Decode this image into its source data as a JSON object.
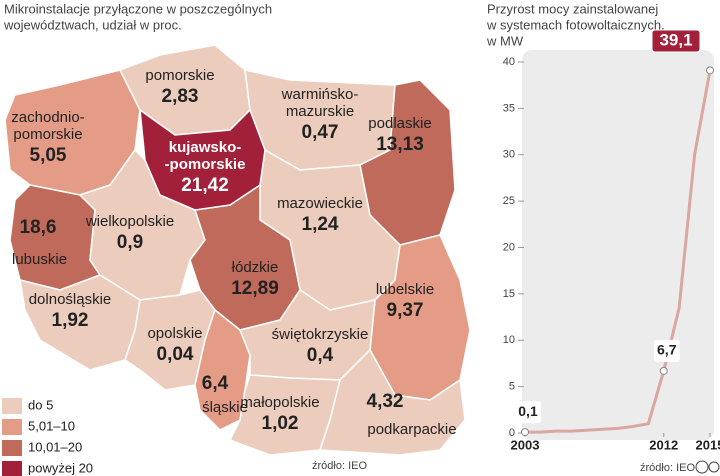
{
  "map": {
    "title": [
      "Mikroinstalacje przyłączone w poszczególnych",
      "województwach, udział w proc."
    ],
    "legend": [
      {
        "label": "do 5",
        "upper": 5,
        "color": "#eccdbd"
      },
      {
        "label": "5,01–10",
        "upper": 10,
        "color": "#e49c86"
      },
      {
        "label": "10,01–20",
        "upper": 20,
        "color": "#bf6a5a"
      },
      {
        "label": "powyżej 20",
        "upper": null,
        "color": "#a3203a"
      }
    ],
    "regions": [
      {
        "name": [
          "zachodnio-",
          "pomorskie"
        ],
        "value": 5.05,
        "value_label": "5,05"
      },
      {
        "name": [
          "pomorskie"
        ],
        "value": 2.83,
        "value_label": "2,83"
      },
      {
        "name": [
          "warmińsko-",
          "mazurskie"
        ],
        "value": 0.47,
        "value_label": "0,47"
      },
      {
        "name": [
          "podlaskie"
        ],
        "value": 13.13,
        "value_label": "13,13"
      },
      {
        "name": [
          "kujawsko-",
          "-pomorskie"
        ],
        "value": 21.42,
        "value_label": "21,42"
      },
      {
        "name": [
          "mazowieckie"
        ],
        "value": 1.24,
        "value_label": "1,24"
      },
      {
        "name": [
          "lubuskie"
        ],
        "value": 18.6,
        "value_label": "18,6"
      },
      {
        "name": [
          "wielkopolskie"
        ],
        "value": 0.9,
        "value_label": "0,9"
      },
      {
        "name": [
          "łódzkie"
        ],
        "value": 12.89,
        "value_label": "12,89"
      },
      {
        "name": [
          "lubelskie"
        ],
        "value": 9.37,
        "value_label": "9,37"
      },
      {
        "name": [
          "dolnośląskie"
        ],
        "value": 1.92,
        "value_label": "1,92"
      },
      {
        "name": [
          "opolskie"
        ],
        "value": 0.04,
        "value_label": "0,04"
      },
      {
        "name": [
          "śląskie"
        ],
        "value": 6.4,
        "value_label": "6,4"
      },
      {
        "name": [
          "świętokrzyskie"
        ],
        "value": 0.4,
        "value_label": "0,4"
      },
      {
        "name": [
          "małopolskie"
        ],
        "value": 1.02,
        "value_label": "1,02"
      },
      {
        "name": [
          "podkarpackie"
        ],
        "value": 4.32,
        "value_label": "4,32"
      }
    ],
    "source": "źródło: IEO"
  },
  "chart_data": {
    "type": "line",
    "title": [
      "Przyrost mocy zainstalowanej",
      "w systemach fotowoltaicznych,",
      "w MW"
    ],
    "x": [
      2003,
      2004,
      2005,
      2006,
      2007,
      2008,
      2009,
      2010,
      2011,
      2012,
      2013,
      2014,
      2015
    ],
    "values": [
      0.1,
      0.1,
      0.2,
      0.2,
      0.3,
      0.4,
      0.5,
      0.7,
      1.0,
      6.7,
      13.5,
      30,
      39.1
    ],
    "value_labels": [
      "0,1",
      null,
      null,
      null,
      null,
      null,
      null,
      null,
      null,
      "6,7",
      null,
      null,
      "39,1"
    ],
    "color": "#d9a6a0",
    "xlim": [
      2003,
      2015
    ],
    "xticks": [
      2003,
      2012,
      2015
    ],
    "ylim": [
      0,
      40
    ],
    "yticks": [
      0,
      5,
      10,
      15,
      20,
      25,
      30,
      35,
      40
    ],
    "source": "źródło: IEO"
  }
}
